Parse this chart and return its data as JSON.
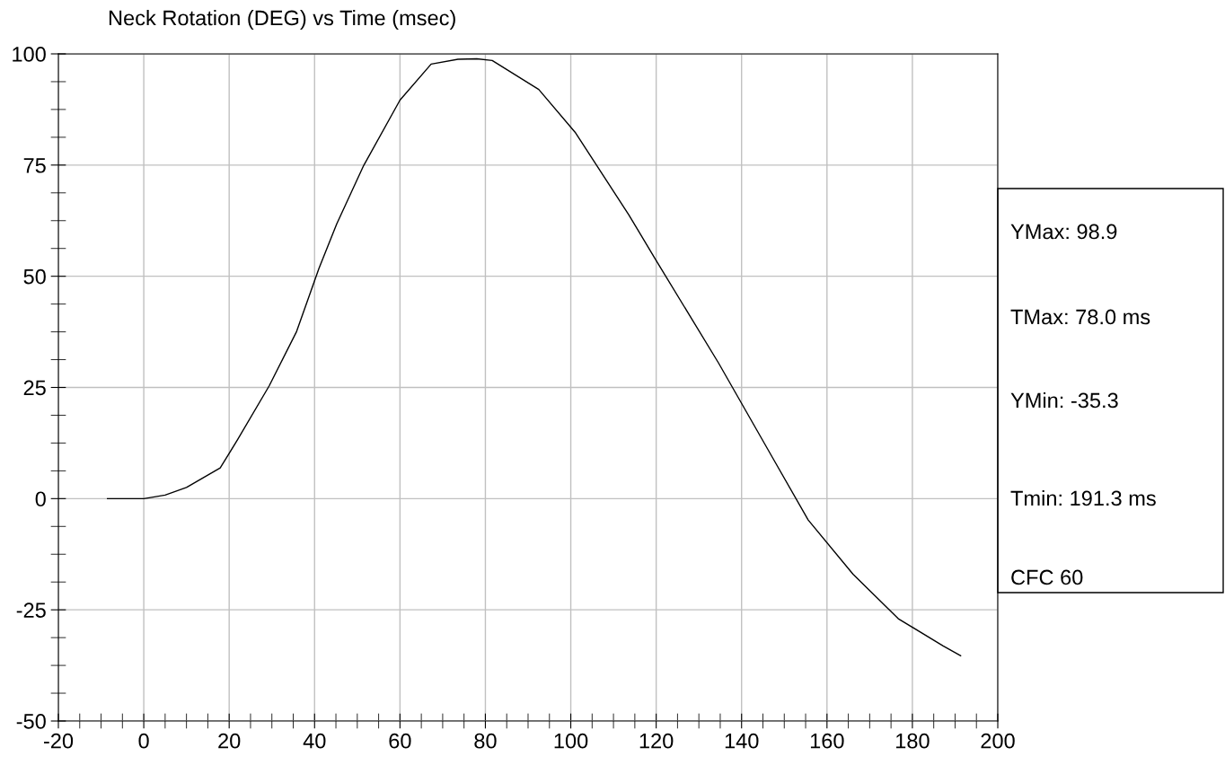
{
  "chart_data": {
    "type": "line",
    "title": "Neck Rotation (DEG) vs Time (msec)",
    "x": [
      -8.5,
      0,
      5,
      10,
      17.9,
      22,
      29.4,
      35.8,
      41,
      45.2,
      51.5,
      60,
      67.3,
      73.6,
      78,
      81.6,
      92.5,
      101,
      113.6,
      119.9,
      134.6,
      147.2,
      155.6,
      166.1,
      176.7,
      187.2,
      191.3
    ],
    "series": [
      {
        "color": "#000000",
        "values": [
          0,
          0,
          0.8,
          2.5,
          6.9,
          13.3,
          25.4,
          37.6,
          51.7,
          61.8,
          74.9,
          89.6,
          97.7,
          98.8,
          98.9,
          98.5,
          92,
          82.4,
          63.8,
          53.7,
          30.5,
          9.3,
          -4.8,
          -17,
          -27,
          -33.1,
          -35.3
        ]
      }
    ],
    "xlim": [
      -20,
      200
    ],
    "xticks": [
      -20,
      0,
      20,
      40,
      60,
      80,
      100,
      120,
      140,
      160,
      180,
      200
    ],
    "ylim": [
      -50,
      100
    ],
    "yticks": [
      -50,
      -25,
      0,
      25,
      50,
      75,
      100
    ],
    "grid": true,
    "marker": "none",
    "line_style": "solid",
    "annotations": [
      "YMax: 98.9",
      "TMax: 78.0 ms",
      "YMin: -35.3",
      "Tmin: 191.3 ms",
      "CFC 60"
    ]
  }
}
